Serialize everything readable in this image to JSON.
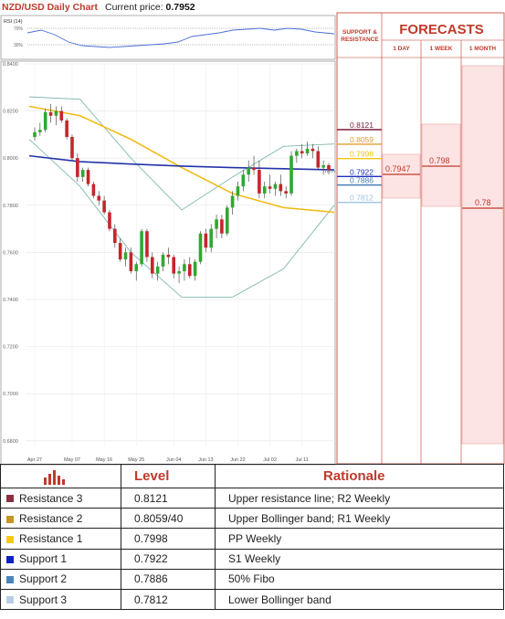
{
  "header": {
    "pair": "NZD/USD Daily Chart",
    "current_label": "Current price:",
    "current_value": "0.7952"
  },
  "rsi": {
    "label": "RSI (14)",
    "levels": [
      "70%",
      "30%"
    ]
  },
  "forecasts": {
    "title": "FORECASTS",
    "sr_title": "SUPPORT & RESISTANCE",
    "columns": [
      "1 DAY",
      "1 WEEK",
      "1 MONTH"
    ],
    "sr_values": [
      {
        "value": "0.8121",
        "color": "#7b1f3a"
      },
      {
        "value": "0.8059",
        "color": "#e0a030"
      },
      {
        "value": "0.7998",
        "color": "#f1c40f"
      },
      {
        "value": "0.7922",
        "color": "#1f2fbf"
      },
      {
        "value": "0.7886",
        "color": "#4a7fb5"
      },
      {
        "value": "0.7812",
        "color": "#9ec5e0"
      }
    ],
    "day": "0.7947",
    "week": "0.798",
    "month": "0.78"
  },
  "table": {
    "headers": [
      "Level",
      "Rationale"
    ],
    "rows": [
      {
        "name": "Resistance 3",
        "level": "0.8121",
        "rationale": "Upper resistance line; R2 Weekly",
        "color": "#8b2f3f"
      },
      {
        "name": "Resistance 2",
        "level": "0.8059/40",
        "rationale": "Upper Bollinger band; R1 Weekly",
        "color": "#c99522"
      },
      {
        "name": "Resistance 1",
        "level": "0.7998",
        "rationale": "PP Weekly",
        "color": "#f6c919"
      },
      {
        "name": "Support 1",
        "level": "0.7922",
        "rationale": "S1 Weekly",
        "color": "#1020c8"
      },
      {
        "name": "Support 2",
        "level": "0.7886",
        "rationale": "50% Fibo",
        "color": "#4a83bb"
      },
      {
        "name": "Support 3",
        "level": "0.7812",
        "rationale": "Lower Bollinger band",
        "color": "#b8cfe6"
      }
    ]
  },
  "chart_data": {
    "type": "candlestick",
    "title": "NZD/USD Daily Chart",
    "y_ticks": [
      "0.8400",
      "0.8200",
      "0.8000",
      "0.7800",
      "0.7600",
      "0.7400",
      "0.7200",
      "0.7000",
      "0.6800"
    ],
    "ylim": [
      0.678,
      0.84
    ],
    "x_ticks": [
      "Apr 27",
      "May 07",
      "May 16",
      "May 25",
      "Jun 04",
      "Jun 13",
      "Jun 22",
      "Jul 02",
      "Jul 11"
    ],
    "candles": [
      [
        0.809,
        0.813,
        0.8075,
        0.811
      ],
      [
        0.811,
        0.815,
        0.8095,
        0.812
      ],
      [
        0.812,
        0.821,
        0.811,
        0.8195
      ],
      [
        0.8195,
        0.823,
        0.815,
        0.818
      ],
      [
        0.818,
        0.822,
        0.814,
        0.82
      ],
      [
        0.82,
        0.822,
        0.815,
        0.816
      ],
      [
        0.816,
        0.817,
        0.808,
        0.809
      ],
      [
        0.809,
        0.81,
        0.799,
        0.8
      ],
      [
        0.8,
        0.802,
        0.79,
        0.792
      ],
      [
        0.792,
        0.796,
        0.79,
        0.795
      ],
      [
        0.795,
        0.796,
        0.788,
        0.789
      ],
      [
        0.789,
        0.79,
        0.783,
        0.784
      ],
      [
        0.784,
        0.786,
        0.78,
        0.782
      ],
      [
        0.782,
        0.784,
        0.776,
        0.777
      ],
      [
        0.777,
        0.778,
        0.769,
        0.77
      ],
      [
        0.77,
        0.772,
        0.762,
        0.764
      ],
      [
        0.764,
        0.766,
        0.756,
        0.757
      ],
      [
        0.757,
        0.762,
        0.754,
        0.76
      ],
      [
        0.76,
        0.762,
        0.751,
        0.752
      ],
      [
        0.752,
        0.756,
        0.748,
        0.755
      ],
      [
        0.755,
        0.77,
        0.754,
        0.769
      ],
      [
        0.769,
        0.77,
        0.756,
        0.758
      ],
      [
        0.758,
        0.76,
        0.749,
        0.751
      ],
      [
        0.751,
        0.756,
        0.748,
        0.754
      ],
      [
        0.754,
        0.76,
        0.752,
        0.759
      ],
      [
        0.759,
        0.762,
        0.755,
        0.758
      ],
      [
        0.758,
        0.759,
        0.749,
        0.751
      ],
      [
        0.751,
        0.754,
        0.747,
        0.752
      ],
      [
        0.752,
        0.757,
        0.748,
        0.755
      ],
      [
        0.755,
        0.758,
        0.749,
        0.75
      ],
      [
        0.75,
        0.757,
        0.748,
        0.756
      ],
      [
        0.756,
        0.769,
        0.755,
        0.768
      ],
      [
        0.768,
        0.77,
        0.76,
        0.762
      ],
      [
        0.762,
        0.772,
        0.76,
        0.77
      ],
      [
        0.77,
        0.776,
        0.766,
        0.774
      ],
      [
        0.774,
        0.776,
        0.766,
        0.768
      ],
      [
        0.768,
        0.78,
        0.767,
        0.779
      ],
      [
        0.779,
        0.786,
        0.776,
        0.784
      ],
      [
        0.784,
        0.79,
        0.782,
        0.788
      ],
      [
        0.788,
        0.795,
        0.786,
        0.793
      ],
      [
        0.793,
        0.799,
        0.79,
        0.796
      ],
      [
        0.796,
        0.801,
        0.793,
        0.795
      ],
      [
        0.795,
        0.799,
        0.783,
        0.785
      ],
      [
        0.785,
        0.79,
        0.783,
        0.788
      ],
      [
        0.788,
        0.793,
        0.785,
        0.787
      ],
      [
        0.787,
        0.79,
        0.784,
        0.789
      ],
      [
        0.789,
        0.793,
        0.784,
        0.786
      ],
      [
        0.786,
        0.788,
        0.783,
        0.785
      ],
      [
        0.785,
        0.803,
        0.784,
        0.801
      ],
      [
        0.801,
        0.804,
        0.798,
        0.803
      ],
      [
        0.803,
        0.806,
        0.8,
        0.802
      ],
      [
        0.802,
        0.807,
        0.801,
        0.804
      ],
      [
        0.804,
        0.806,
        0.8,
        0.803
      ],
      [
        0.803,
        0.805,
        0.795,
        0.796
      ],
      [
        0.796,
        0.799,
        0.793,
        0.797
      ],
      [
        0.797,
        0.798,
        0.793,
        0.795
      ]
    ],
    "ma_blue": [
      0.801,
      0.7985,
      0.7975,
      0.7966,
      0.796,
      0.7955,
      0.795
    ],
    "ma_yellow": [
      0.822,
      0.818,
      0.808,
      0.796,
      0.785,
      0.779,
      0.777
    ],
    "bb_upper": [
      0.826,
      0.825,
      0.8,
      0.778,
      0.792,
      0.805,
      0.806
    ],
    "bb_lower": [
      0.808,
      0.788,
      0.76,
      0.741,
      0.741,
      0.753,
      0.78
    ]
  }
}
